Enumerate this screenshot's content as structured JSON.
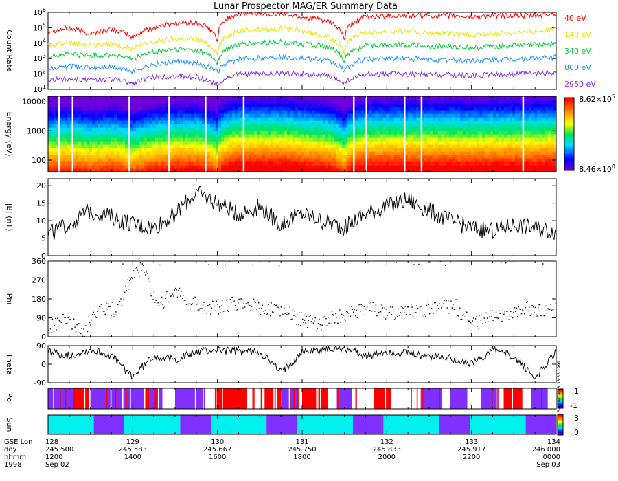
{
  "title": "Lunar Prospector MAG/ER Summary Data",
  "stamp": "Sat Dec 4 08:38:55 1999",
  "chart_data": [
    {
      "type": "line",
      "panel": "count_rate",
      "ylabel": "Count Rate",
      "yscale": "log",
      "ylim": [
        10,
        1000000
      ],
      "ytick_labels": [
        "10^1",
        "10^2",
        "10^3",
        "10^4",
        "10^5",
        "10^6"
      ],
      "x": [
        128,
        128.25,
        128.5,
        128.75,
        129,
        129.25,
        129.5,
        129.75,
        130,
        130.25,
        130.5,
        130.75,
        131,
        131.25,
        131.5,
        131.75,
        132,
        132.25,
        132.5,
        132.75,
        133,
        133.25,
        133.5,
        133.75,
        134
      ],
      "series": [
        {
          "name": "40 eV",
          "color": "#ff0000",
          "values": [
            60000.0,
            90000.0,
            40000.0,
            80000.0,
            20000.0,
            100000.0,
            200000.0,
            200000.0,
            10000.0,
            800000,
            800000,
            800000,
            500000,
            300000,
            10000.0,
            500000,
            600000,
            600000,
            600000,
            600000,
            500000,
            600000,
            600000,
            600000,
            800000
          ]
        },
        {
          "name": "140 eV",
          "color": "#e6e600",
          "values": [
            8000,
            10000,
            7000,
            9000,
            4000,
            12000,
            20000,
            18000,
            1500,
            60000,
            80000,
            90000,
            60000,
            30000,
            2000,
            50000,
            60000,
            60000,
            40000,
            40000,
            30000,
            40000,
            50000,
            60000,
            80000
          ]
        },
        {
          "name": "340 eV",
          "color": "#00cc33",
          "values": [
            1500,
            2000,
            1500,
            1800,
            900,
            2500,
            4000,
            3500,
            500,
            8000,
            10000,
            12000,
            9000,
            6000,
            700,
            7000,
            8000,
            8000,
            6000,
            6000,
            5000,
            6000,
            7000,
            8000,
            10000
          ]
        },
        {
          "name": "800 eV",
          "color": "#1e90ff",
          "values": [
            200,
            300,
            250,
            280,
            150,
            400,
            600,
            500,
            120,
            900,
            1100,
            1300,
            1000,
            800,
            150,
            900,
            1000,
            1000,
            800,
            800,
            700,
            800,
            900,
            1000,
            1200
          ]
        },
        {
          "name": "2950 eV",
          "color": "#8a2be2",
          "values": [
            40,
            50,
            40,
            45,
            25,
            60,
            70,
            60,
            20,
            90,
            100,
            110,
            100,
            80,
            25,
            90,
            100,
            100,
            90,
            90,
            80,
            90,
            100,
            100,
            120
          ]
        }
      ]
    },
    {
      "type": "heatmap",
      "panel": "energy_spectrogram",
      "ylabel": "Energy (eV)",
      "yscale": "log",
      "ylim": [
        40,
        15000
      ],
      "ytick_labels": [
        "100",
        "1000",
        "10000"
      ],
      "colorbar": {
        "max": "8.62x10^5",
        "min": "8.46x10^0"
      }
    },
    {
      "type": "line",
      "panel": "field_magnitude",
      "ylabel": "|B| (nT)",
      "ylim": [
        0,
        22
      ],
      "ytick_labels": [
        "0",
        "5",
        "10",
        "15",
        "20"
      ],
      "x": [
        128,
        128.25,
        128.5,
        128.75,
        129,
        129.25,
        129.5,
        129.75,
        130,
        130.25,
        130.5,
        130.75,
        131,
        131.25,
        131.5,
        131.75,
        132,
        132.25,
        132.5,
        132.75,
        133,
        133.25,
        133.5,
        133.75,
        134
      ],
      "values": [
        6,
        9,
        13,
        11,
        9,
        8,
        12,
        18,
        15,
        12,
        14,
        9,
        12,
        10,
        8,
        12,
        14,
        16,
        13,
        10,
        8,
        7,
        9,
        8,
        7
      ]
    },
    {
      "type": "scatter",
      "panel": "phi",
      "ylabel": "Phi",
      "ylim": [
        0,
        360
      ],
      "ytick_labels": [
        "0",
        "90",
        "180",
        "270",
        "360"
      ],
      "x": [
        128,
        128.2,
        128.4,
        128.6,
        128.8,
        129,
        129.1,
        129.3,
        129.5,
        129.7,
        129.9,
        130.1,
        130.3,
        130.5,
        130.6,
        130.8,
        131,
        131.2,
        131.4,
        131.6,
        131.8,
        132,
        132.2,
        132.4,
        132.6,
        132.8,
        133,
        133.2,
        133.4,
        133.6,
        133.8,
        134
      ],
      "values": [
        40,
        90,
        20,
        140,
        130,
        300,
        330,
        150,
        220,
        160,
        140,
        150,
        170,
        140,
        130,
        120,
        80,
        60,
        100,
        120,
        140,
        110,
        120,
        130,
        140,
        150,
        60,
        100,
        110,
        140,
        120,
        130
      ]
    },
    {
      "type": "line",
      "panel": "theta",
      "ylabel": "Theta",
      "ylim": [
        -90,
        90
      ],
      "ytick_labels": [
        "-90",
        "0",
        "90"
      ],
      "x": [
        128,
        128.25,
        128.5,
        128.75,
        129,
        129.25,
        129.5,
        129.75,
        130,
        130.25,
        130.5,
        130.75,
        131,
        131.25,
        131.5,
        131.75,
        132,
        132.25,
        132.5,
        132.75,
        133,
        133.25,
        133.5,
        133.75,
        134
      ],
      "values": [
        60,
        40,
        70,
        40,
        -60,
        40,
        20,
        60,
        70,
        60,
        60,
        -40,
        60,
        70,
        80,
        40,
        60,
        50,
        40,
        30,
        0,
        70,
        40,
        -70,
        60
      ]
    },
    {
      "type": "heatmap",
      "panel": "pol",
      "ylabel": "Pol",
      "colorbar": {
        "max": "1",
        "min": "-1"
      },
      "segments": [
        {
          "x0": 128,
          "x1": 128.3,
          "state": "-1"
        },
        {
          "x0": 128.3,
          "x1": 128.5,
          "state": "1"
        },
        {
          "x0": 128.5,
          "x1": 129,
          "state": "-1"
        },
        {
          "x0": 129,
          "x1": 129.35,
          "state": "-1"
        },
        {
          "x0": 129.5,
          "x1": 129.85,
          "state": "-1"
        },
        {
          "x0": 130,
          "x1": 130.35,
          "state": "1"
        },
        {
          "x0": 130.55,
          "x1": 130.75,
          "state": "1"
        },
        {
          "x0": 130.75,
          "x1": 130.95,
          "state": "-1"
        },
        {
          "x0": 131,
          "x1": 131.3,
          "state": "1"
        },
        {
          "x0": 131.4,
          "x1": 131.6,
          "state": "-1"
        },
        {
          "x0": 131.85,
          "x1": 132.05,
          "state": "1"
        },
        {
          "x0": 132.4,
          "x1": 132.65,
          "state": "-1"
        },
        {
          "x0": 132.75,
          "x1": 132.95,
          "state": "-1"
        },
        {
          "x0": 133.1,
          "x1": 133.3,
          "state": "-1"
        },
        {
          "x0": 133.4,
          "x1": 133.6,
          "state": "1"
        },
        {
          "x0": 133.7,
          "x1": 133.9,
          "state": "-1"
        }
      ]
    },
    {
      "type": "heatmap",
      "panel": "sun",
      "ylabel": "Sun",
      "colorbar": {
        "max": "3",
        "min": "0"
      },
      "segments": [
        {
          "x0": 128,
          "x1": 128.54,
          "state": "1"
        },
        {
          "x0": 128.54,
          "x1": 128.9,
          "state": "0"
        },
        {
          "x0": 128.9,
          "x1": 129.56,
          "state": "1"
        },
        {
          "x0": 129.56,
          "x1": 129.93,
          "state": "0"
        },
        {
          "x0": 129.93,
          "x1": 130.58,
          "state": "1"
        },
        {
          "x0": 130.58,
          "x1": 130.94,
          "state": "0"
        },
        {
          "x0": 130.94,
          "x1": 131.6,
          "state": "1"
        },
        {
          "x0": 131.6,
          "x1": 131.96,
          "state": "0"
        },
        {
          "x0": 131.96,
          "x1": 132.62,
          "state": "1"
        },
        {
          "x0": 132.62,
          "x1": 132.98,
          "state": "0"
        },
        {
          "x0": 132.98,
          "x1": 133.64,
          "state": "1"
        },
        {
          "x0": 133.64,
          "x1": 134,
          "state": "0"
        }
      ]
    }
  ],
  "xaxis": {
    "row_labels": [
      "GSE Lon",
      "doy",
      "hhmm",
      "1998"
    ],
    "ticks": [
      {
        "lon": "128",
        "doy": "245.500",
        "hhmm": "1200",
        "date": "Sep 02"
      },
      {
        "lon": "129",
        "doy": "245.583",
        "hhmm": "1400",
        "date": ""
      },
      {
        "lon": "130",
        "doy": "245.667",
        "hhmm": "1600",
        "date": ""
      },
      {
        "lon": "131",
        "doy": "245.750",
        "hhmm": "1800",
        "date": ""
      },
      {
        "lon": "132",
        "doy": "245.833",
        "hhmm": "2000",
        "date": ""
      },
      {
        "lon": "133",
        "doy": "245.917",
        "hhmm": "2200",
        "date": ""
      },
      {
        "lon": "134",
        "doy": "246.000",
        "hhmm": "0000",
        "date": "Sep 03"
      }
    ]
  },
  "colors": {
    "violet": "#7f2fff",
    "cyan": "#00f0f0",
    "red": "#ff0000"
  }
}
